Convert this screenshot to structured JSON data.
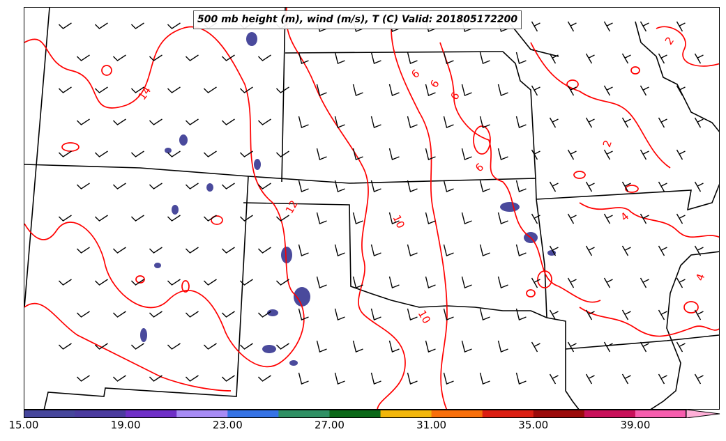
{
  "title": "500 mb height (m), wind (m/s), T (C) Valid: 201805172200",
  "colorbar": {
    "colors": [
      "#46469c",
      "#4b3b9f",
      "#6f2fc7",
      "#a78bf5",
      "#3573e6",
      "#2e9064",
      "#0a6818",
      "#f2b60a",
      "#f86f0a",
      "#dc1e12",
      "#9b0a0a",
      "#c9105a",
      "#f75dae",
      "#ffb0d8"
    ],
    "tick_labels": [
      "15.00",
      "19.00",
      "23.00",
      "27.00",
      "31.00",
      "35.00",
      "39.00"
    ]
  },
  "temperature_contour_labels": [
    "14",
    "12",
    "10",
    "10",
    "6",
    "6",
    "6",
    "6",
    "2",
    "2",
    "4",
    "4"
  ],
  "contour_color": "#ff0000",
  "shading_color": "#4a4a9c"
}
